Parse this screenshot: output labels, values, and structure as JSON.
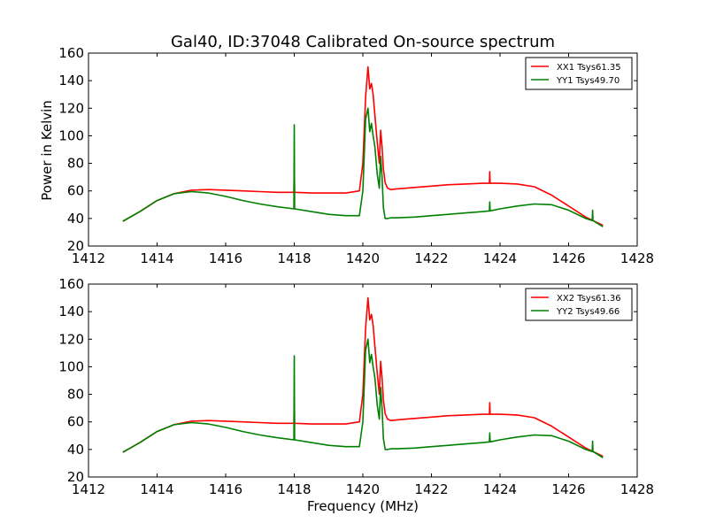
{
  "figure": {
    "title": "Gal40, ID:37048 Calibrated On-source spectrum",
    "ylabel": "Power in Kelvin",
    "xlabel": "Frequency (MHz)"
  },
  "chart_data": [
    {
      "type": "line",
      "title": "Gal40, ID:37048 Calibrated On-source spectrum",
      "xlabel": "",
      "ylabel": "Power in Kelvin",
      "xlim": [
        1412,
        1428
      ],
      "ylim": [
        20,
        160
      ],
      "xticks": [
        1412,
        1414,
        1416,
        1418,
        1420,
        1422,
        1424,
        1426,
        1428
      ],
      "yticks": [
        20,
        40,
        60,
        80,
        100,
        120,
        140,
        160
      ],
      "legend_position": "top-right",
      "grid": false,
      "series": [
        {
          "name": "XX1 Tsys61.35",
          "color": "#ff0000",
          "x": [
            1413.0,
            1413.5,
            1414.0,
            1414.5,
            1415.0,
            1415.5,
            1416.0,
            1416.5,
            1417.0,
            1417.5,
            1417.99,
            1418.0,
            1418.01,
            1418.5,
            1419.0,
            1419.5,
            1419.9,
            1420.0,
            1420.08,
            1420.15,
            1420.2,
            1420.25,
            1420.3,
            1420.35,
            1420.42,
            1420.48,
            1420.52,
            1420.56,
            1420.6,
            1420.65,
            1420.72,
            1420.82,
            1421.0,
            1421.5,
            1422.0,
            1422.5,
            1423.0,
            1423.5,
            1423.69,
            1423.7,
            1423.71,
            1424.0,
            1424.5,
            1425.0,
            1425.5,
            1426.0,
            1426.5,
            1427.0
          ],
          "y": [
            38,
            45,
            53,
            58,
            60.5,
            61,
            60.5,
            60,
            59.5,
            59,
            59,
            75,
            59,
            58.5,
            58.5,
            58.5,
            60,
            80,
            128,
            150,
            134,
            138,
            130,
            115,
            95,
            80,
            104,
            92,
            76,
            66,
            62,
            61,
            61.5,
            62.5,
            63.5,
            64.5,
            65,
            65.5,
            65.5,
            74,
            65.5,
            65.5,
            65,
            63,
            57,
            49,
            41,
            35
          ]
        },
        {
          "name": "YY1 Tsys49.70",
          "color": "#008000",
          "x": [
            1413.0,
            1413.5,
            1414.0,
            1414.5,
            1415.0,
            1415.5,
            1416.0,
            1416.5,
            1417.0,
            1417.5,
            1417.99,
            1418.0,
            1418.01,
            1418.5,
            1419.0,
            1419.5,
            1419.9,
            1420.0,
            1420.08,
            1420.15,
            1420.2,
            1420.25,
            1420.3,
            1420.35,
            1420.42,
            1420.48,
            1420.52,
            1420.56,
            1420.6,
            1420.65,
            1420.72,
            1420.82,
            1421.0,
            1421.5,
            1422.0,
            1422.5,
            1423.0,
            1423.5,
            1423.69,
            1423.7,
            1423.71,
            1424.0,
            1424.5,
            1425.0,
            1425.5,
            1426.0,
            1426.5,
            1426.69,
            1426.7,
            1426.71,
            1427.0
          ],
          "y": [
            38,
            45,
            53,
            58,
            59.5,
            58.5,
            56,
            53,
            50.5,
            48.5,
            47,
            108,
            47,
            45,
            43,
            42,
            42,
            60,
            112,
            120,
            103,
            109,
            100,
            92,
            72,
            62,
            85,
            70,
            48,
            40,
            40,
            40.5,
            40.5,
            41,
            42,
            43,
            44,
            45,
            45.5,
            52,
            45.5,
            47,
            49,
            50.5,
            50,
            46,
            40,
            38.5,
            46,
            38.5,
            34
          ]
        }
      ]
    },
    {
      "type": "line",
      "title": "",
      "xlabel": "Frequency (MHz)",
      "ylabel": "",
      "xlim": [
        1412,
        1428
      ],
      "ylim": [
        20,
        160
      ],
      "xticks": [
        1412,
        1414,
        1416,
        1418,
        1420,
        1422,
        1424,
        1426,
        1428
      ],
      "yticks": [
        20,
        40,
        60,
        80,
        100,
        120,
        140,
        160
      ],
      "legend_position": "top-right",
      "grid": false,
      "series": [
        {
          "name": "XX2 Tsys61.36",
          "color": "#ff0000",
          "x": [
            1413.0,
            1413.5,
            1414.0,
            1414.5,
            1415.0,
            1415.5,
            1416.0,
            1416.5,
            1417.0,
            1417.5,
            1417.99,
            1418.0,
            1418.01,
            1418.5,
            1419.0,
            1419.5,
            1419.9,
            1420.0,
            1420.08,
            1420.15,
            1420.2,
            1420.25,
            1420.3,
            1420.35,
            1420.42,
            1420.48,
            1420.52,
            1420.56,
            1420.6,
            1420.65,
            1420.72,
            1420.82,
            1421.0,
            1421.5,
            1422.0,
            1422.5,
            1423.0,
            1423.5,
            1423.69,
            1423.7,
            1423.71,
            1424.0,
            1424.5,
            1425.0,
            1425.5,
            1426.0,
            1426.5,
            1427.0
          ],
          "y": [
            38,
            45,
            53,
            58,
            60.5,
            61,
            60.5,
            60,
            59.5,
            59,
            59,
            75,
            59,
            58.5,
            58.5,
            58.5,
            60,
            80,
            128,
            150,
            134,
            138,
            130,
            115,
            95,
            80,
            104,
            92,
            76,
            66,
            62,
            61,
            61.5,
            62.5,
            63.5,
            64.5,
            65,
            65.5,
            65.5,
            74,
            65.5,
            65.5,
            65,
            63,
            57,
            49,
            41,
            35
          ]
        },
        {
          "name": "YY2 Tsys49.66",
          "color": "#008000",
          "x": [
            1413.0,
            1413.5,
            1414.0,
            1414.5,
            1415.0,
            1415.5,
            1416.0,
            1416.5,
            1417.0,
            1417.5,
            1417.99,
            1418.0,
            1418.01,
            1418.5,
            1419.0,
            1419.5,
            1419.9,
            1420.0,
            1420.08,
            1420.15,
            1420.2,
            1420.25,
            1420.3,
            1420.35,
            1420.42,
            1420.48,
            1420.52,
            1420.56,
            1420.6,
            1420.65,
            1420.72,
            1420.82,
            1421.0,
            1421.5,
            1422.0,
            1422.5,
            1423.0,
            1423.5,
            1423.69,
            1423.7,
            1423.71,
            1424.0,
            1424.5,
            1425.0,
            1425.5,
            1426.0,
            1426.5,
            1426.69,
            1426.7,
            1426.71,
            1427.0
          ],
          "y": [
            38,
            45,
            53,
            58,
            59.5,
            58.5,
            56,
            53,
            50.5,
            48.5,
            47,
            108,
            47,
            45,
            43,
            42,
            42,
            60,
            112,
            120,
            103,
            109,
            100,
            92,
            72,
            62,
            85,
            70,
            48,
            40,
            40,
            40.5,
            40.5,
            41,
            42,
            43,
            44,
            45,
            45.5,
            52,
            45.5,
            47,
            49,
            50.5,
            50,
            46,
            40,
            38.5,
            46,
            38.5,
            34
          ]
        }
      ]
    }
  ]
}
